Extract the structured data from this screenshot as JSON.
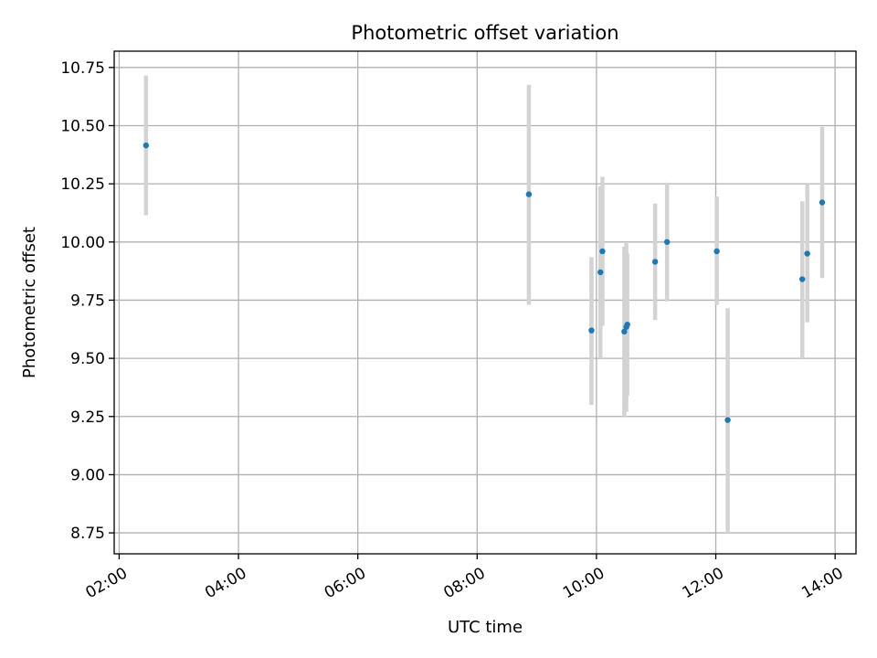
{
  "chart_data": {
    "type": "scatter",
    "title": "Photometric offset variation",
    "xlabel": "UTC time",
    "ylabel": "Photometric offset",
    "x_unit": "UTC hours",
    "xlim": [
      "01:55",
      "14:21"
    ],
    "ylim": [
      8.66,
      10.82
    ],
    "x_ticks": [
      "02:00",
      "04:00",
      "06:00",
      "08:00",
      "10:00",
      "12:00",
      "14:00"
    ],
    "y_ticks": [
      "8.75",
      "9.00",
      "9.25",
      "9.50",
      "9.75",
      "10.00",
      "10.25",
      "10.50",
      "10.75"
    ],
    "grid": true,
    "point_color": "#1f77b4",
    "errorbar_color": "#d3d3d3",
    "points": [
      {
        "x": "02:27",
        "y": 10.415,
        "ylow": 10.115,
        "yhigh": 10.715
      },
      {
        "x": "08:52",
        "y": 10.205,
        "ylow": 9.73,
        "yhigh": 10.675
      },
      {
        "x": "09:55",
        "y": 9.62,
        "ylow": 9.3,
        "yhigh": 9.935
      },
      {
        "x": "10:04",
        "y": 9.87,
        "ylow": 9.5,
        "yhigh": 10.24
      },
      {
        "x": "10:06",
        "y": 9.96,
        "ylow": 9.64,
        "yhigh": 10.28
      },
      {
        "x": "10:28",
        "y": 9.615,
        "ylow": 9.25,
        "yhigh": 9.98
      },
      {
        "x": "10:30",
        "y": 9.635,
        "ylow": 9.27,
        "yhigh": 9.995
      },
      {
        "x": "10:31",
        "y": 9.645,
        "ylow": 9.34,
        "yhigh": 9.95
      },
      {
        "x": "10:59",
        "y": 9.915,
        "ylow": 9.665,
        "yhigh": 10.165
      },
      {
        "x": "11:11",
        "y": 10.0,
        "ylow": 9.745,
        "yhigh": 10.255
      },
      {
        "x": "12:01",
        "y": 9.96,
        "ylow": 9.73,
        "yhigh": 10.195
      },
      {
        "x": "12:12",
        "y": 9.235,
        "ylow": 8.75,
        "yhigh": 9.715
      },
      {
        "x": "13:27",
        "y": 9.84,
        "ylow": 9.5,
        "yhigh": 10.175
      },
      {
        "x": "13:32",
        "y": 9.95,
        "ylow": 9.655,
        "yhigh": 10.25
      },
      {
        "x": "13:47",
        "y": 10.17,
        "ylow": 9.845,
        "yhigh": 10.495
      }
    ]
  }
}
